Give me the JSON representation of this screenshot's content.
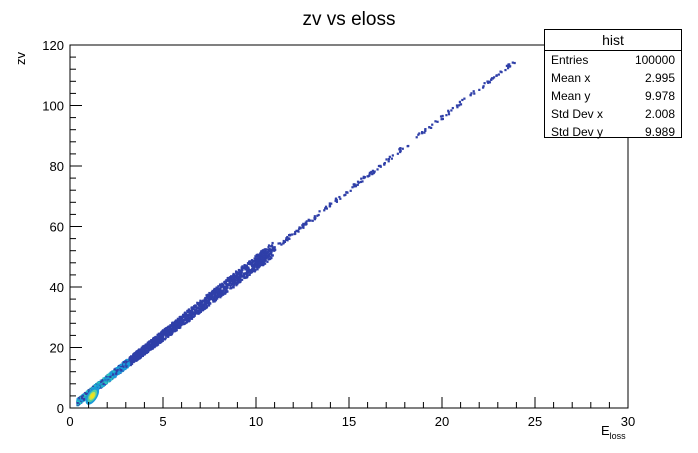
{
  "chart_data": {
    "type": "heatmap",
    "title": "zv vs eloss",
    "xlabel_main": "E",
    "xlabel_sub": "loss",
    "ylabel": "zv",
    "xlim": [
      0,
      30
    ],
    "ylim": [
      0,
      120
    ],
    "x_ticks": [
      "0",
      "5",
      "10",
      "15",
      "20",
      "25",
      "30"
    ],
    "y_ticks": [
      "0",
      "20",
      "40",
      "60",
      "80",
      "100",
      "120"
    ],
    "relation": "y ≈ 4.8·x (dense band from x≈0.5 to x≈10, sparse tail to x≈24)",
    "hot_spot": {
      "x": 1.2,
      "y": 4
    },
    "colors": {
      "low": "#2f3fa8",
      "mid": "#1a9ad8",
      "high": "#f0e21a",
      "peak": "#c8e04c"
    }
  },
  "stats_box": {
    "title": "hist",
    "rows": [
      {
        "label": "Entries",
        "value": "100000"
      },
      {
        "label": "Mean x",
        "value": "2.995"
      },
      {
        "label": "Mean y",
        "value": "9.978"
      },
      {
        "label": "Std Dev x",
        "value": "2.008"
      },
      {
        "label": "Std Dev y",
        "value": "9.989"
      }
    ]
  }
}
